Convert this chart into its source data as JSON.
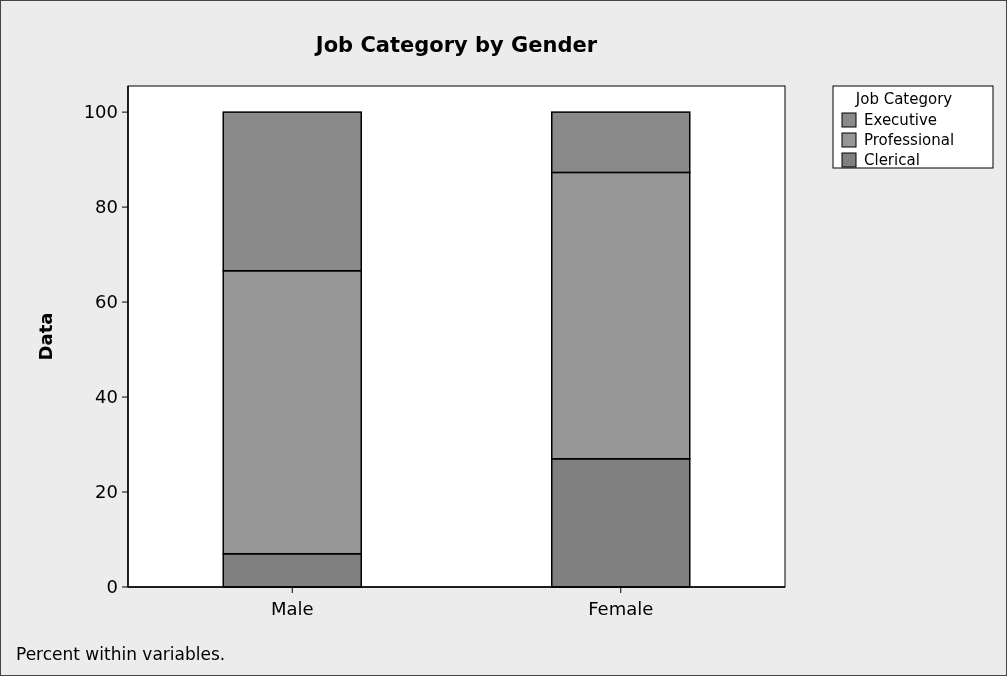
{
  "chart_data": {
    "type": "bar",
    "title": "Job Category by Gender",
    "ylabel": "Data",
    "legend_title": "Job Category",
    "annotations": [
      "Percent within variables."
    ],
    "categories": [
      "Male",
      "Female"
    ],
    "series": [
      {
        "name": "Clerical",
        "color": "#808080",
        "values": [
          7,
          27
        ]
      },
      {
        "name": "Professional",
        "color": "#969696",
        "values": [
          59.6,
          60.3
        ]
      },
      {
        "name": "Executive",
        "color": "#8a8a8a",
        "values": [
          33.4,
          12.7
        ]
      }
    ],
    "stacked": true,
    "ylim": [
      0,
      105.5
    ],
    "yticks": [
      0,
      20,
      40,
      60,
      80,
      100
    ],
    "legend": "right"
  }
}
